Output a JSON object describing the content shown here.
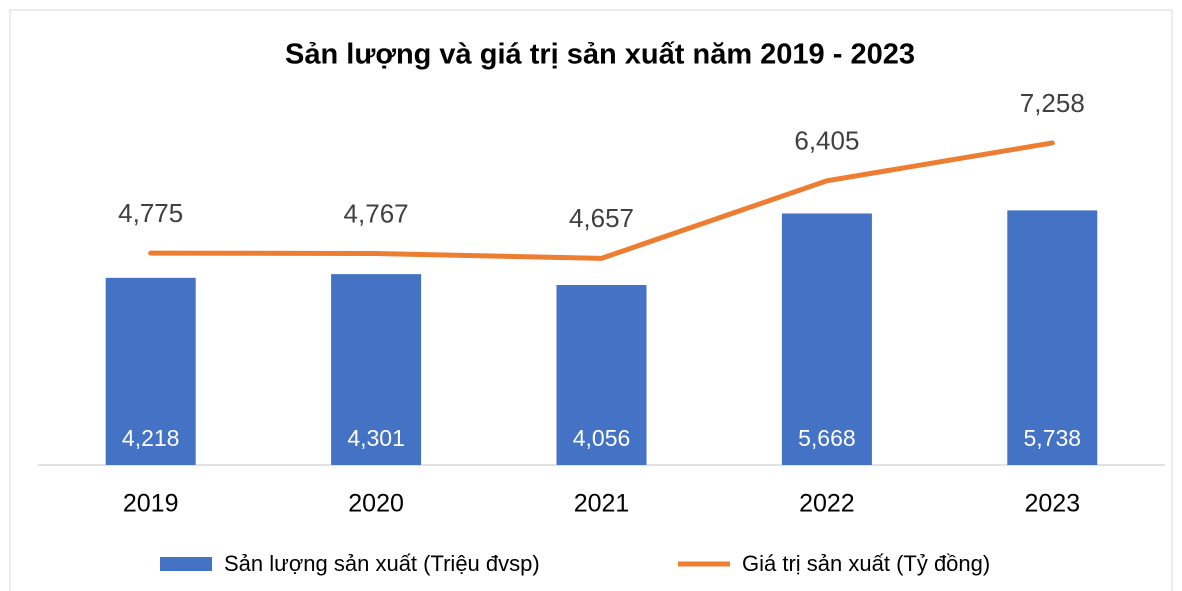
{
  "chart_data": {
    "type": "bar_line",
    "title": "Sản lượng và giá trị sản xuất năm 2019 - 2023",
    "categories": [
      "2019",
      "2020",
      "2021",
      "2022",
      "2023"
    ],
    "series": [
      {
        "name": "Sản lượng sản xuất (Triệu đvsp)",
        "type": "bar",
        "color": "#4472c4",
        "values": [
          4218,
          4301,
          4056,
          5668,
          5738
        ],
        "value_labels": [
          "4,218",
          "4,301",
          "4,056",
          "5,668",
          "5,738"
        ]
      },
      {
        "name": "Giá trị sản xuất (Tỷ đồng)",
        "type": "line",
        "axis": "y2",
        "color": "#ed7d31",
        "values": [
          4775,
          4767,
          4657,
          6405,
          7258
        ],
        "value_labels": [
          "4,775",
          "4,767",
          "4,657",
          "6,405",
          "7,258"
        ]
      }
    ],
    "ylim": [
      0,
      8000
    ],
    "y2lim": [
      0,
      8000
    ],
    "legend": "bottom"
  }
}
